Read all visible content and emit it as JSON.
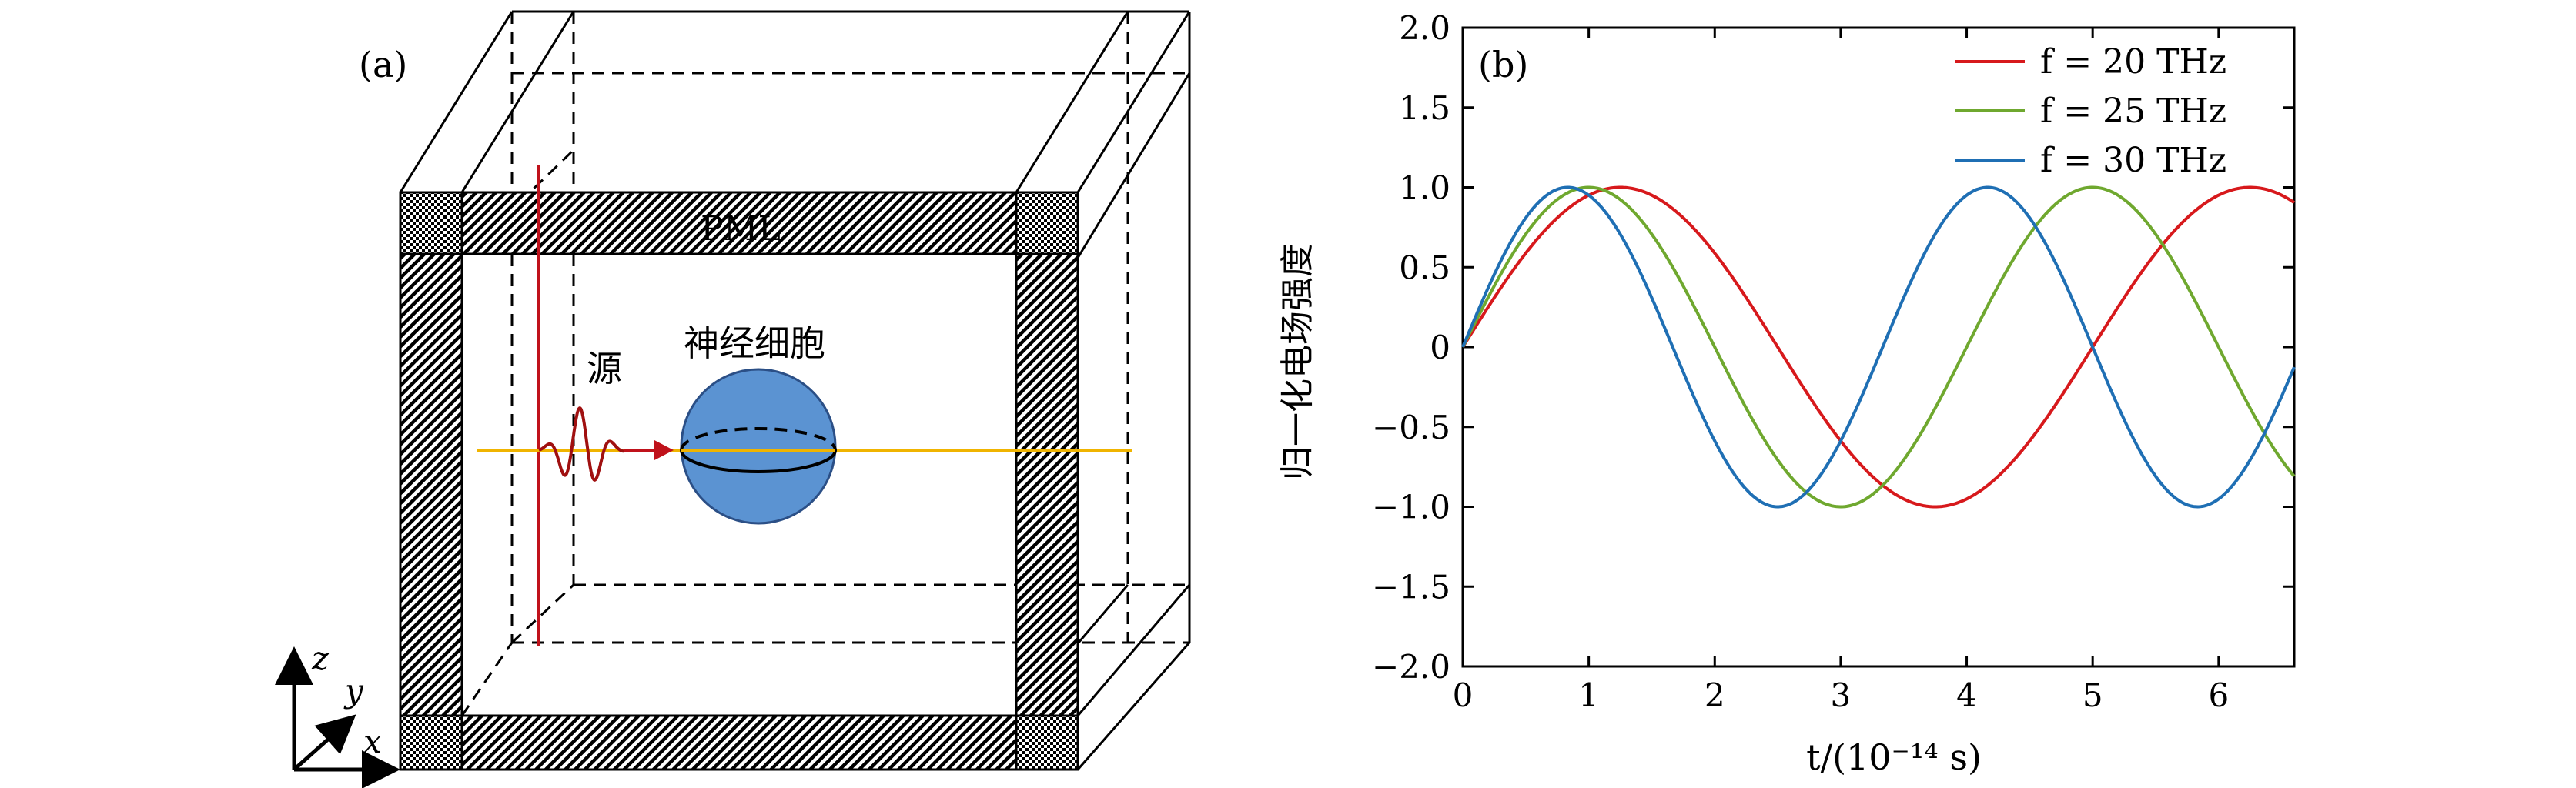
{
  "panel_a": {
    "label": "(a)",
    "pml_label": "PML",
    "source_label": "源",
    "cell_label": "神经细胞",
    "axes": {
      "z": "z",
      "y": "y",
      "x": "x"
    },
    "colors": {
      "source_line": "#c0121b",
      "wave": "#a01010",
      "propagation_line": "#f0b400",
      "cell_fill": "#5b93d2",
      "cell_stroke": "#2b4f86"
    }
  },
  "panel_b": {
    "label": "(b)"
  },
  "chart_data": {
    "type": "line",
    "xlabel": "t/(10⁻¹⁴ s)",
    "ylabel": "归一化电场强度",
    "xlim": [
      0,
      6.6
    ],
    "ylim": [
      -2.0,
      2.0
    ],
    "xticks": [
      0,
      1,
      2,
      3,
      4,
      5,
      6
    ],
    "yticks": [
      2.0,
      1.5,
      1.0,
      0.5,
      0,
      -0.5,
      -1.0,
      -1.5,
      -2.0
    ],
    "ytick_labels": [
      "2.0",
      "1.5",
      "1.0",
      "0.5",
      "0",
      "−0.5",
      "−1.0",
      "−1.5",
      "−2.0"
    ],
    "legend_placement": "top-right",
    "grid": false,
    "series": [
      {
        "name": "f = 20 THz",
        "frequency_thz": 20,
        "color": "#d7191c"
      },
      {
        "name": "f = 25 THz",
        "frequency_thz": 25,
        "color": "#6fa82f"
      },
      {
        "name": "f = 30 THz",
        "frequency_thz": 30,
        "color": "#1f6fb4"
      }
    ]
  }
}
